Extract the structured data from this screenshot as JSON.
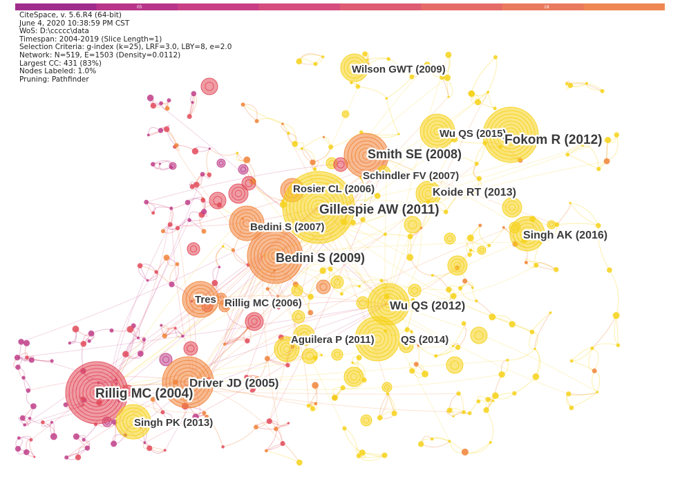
{
  "info_lines": [
    "CiteSpace, v. 5.6.R4 (64-bit)",
    "June 4, 2020 10:38:59 PM CST",
    "WoS: D:\\ccccc\\data",
    "Timespan: 2004-2019 (Slice Length=1)",
    "Selection Criteria: g-index (k=25), LRF=3.0, LBY=8, e=2.0",
    "Network: N=519, E=1503 (Density=0.0112)",
    "Largest CC: 431 (83%)",
    "Nodes Labeled: 1.0%",
    "Pruning: Pathfinder"
  ],
  "timebar": {
    "start_label": "05",
    "end_label": "18",
    "colors": [
      "#a02c8c",
      "#b8358a",
      "#c83f86",
      "#d44d7e",
      "#de5c73",
      "#e56b68",
      "#ea7a5d",
      "#ee8752"
    ]
  },
  "palette": {
    "magenta": "#c0408a",
    "red": "#e24a5a",
    "orange": "#f0843a",
    "yellow": "#f6d21a",
    "label_text": "#3a3a3a"
  },
  "nodes": [
    {
      "label": "Wilson GWT (2009)",
      "color": "yellow"
    },
    {
      "label": "Wu QS (2015)",
      "color": "yellow"
    },
    {
      "label": "Fokom R (2012)",
      "color": "yellow"
    },
    {
      "label": "Smith SE (2008)",
      "color": "orange"
    },
    {
      "label": "Schindler FV (2007)",
      "color": "yellow"
    },
    {
      "label": "Rosier CL (2006)",
      "color": "orange"
    },
    {
      "label": "Koide RT (2013)",
      "color": "yellow"
    },
    {
      "label": "Gillespie AW (2011)",
      "color": "yellow"
    },
    {
      "label": "Bedini S (2007)",
      "color": "orange"
    },
    {
      "label": "Singh AK (2016)",
      "color": "yellow"
    },
    {
      "label": "Bedini S (2009)",
      "color": "orange"
    },
    {
      "label": "Tres",
      "color": "orange"
    },
    {
      "label": "Rillig MC (2006)",
      "color": "orange"
    },
    {
      "label": "Wu QS (2012)",
      "color": "yellow"
    },
    {
      "label": "Aguilera P (2011)",
      "color": "yellow"
    },
    {
      "label": "QS (2014)",
      "color": "yellow"
    },
    {
      "label": "Driver JD (2005)",
      "color": "orange"
    },
    {
      "label": "Rillig MC (2004)",
      "color": "red"
    },
    {
      "label": "Singh PK (2013)",
      "color": "yellow"
    }
  ]
}
